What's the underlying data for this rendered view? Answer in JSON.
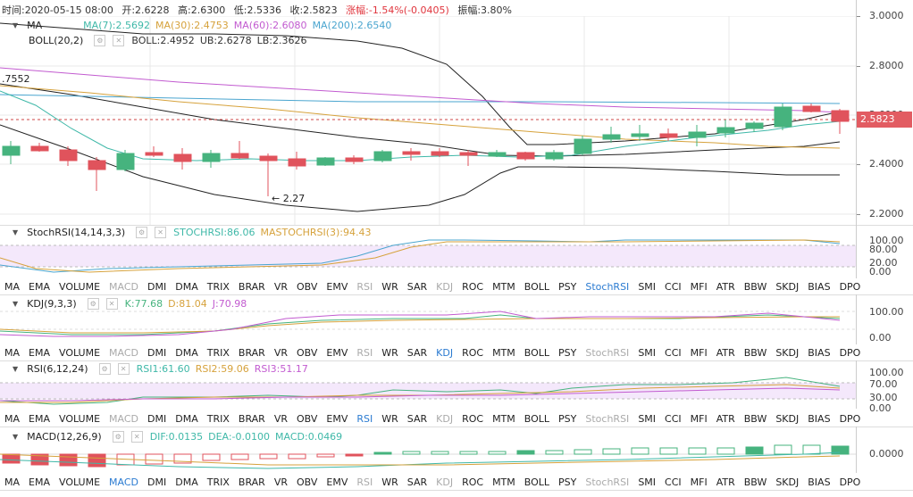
{
  "info": {
    "time": "时间:2020-05-15 08:00",
    "open": "开:2.6228",
    "high": "高:2.6300",
    "low": "低:2.5336",
    "close": "收:2.5823",
    "change": "涨幅:-1.54%(-0.0405)",
    "amplitude": "振幅:3.80%"
  },
  "main": {
    "ma_title": "MA",
    "ma7": "MA(7):2.5692",
    "ma30": "MA(30):2.4753",
    "ma60": "MA(60):2.6080",
    "ma200": "MA(200):2.6540",
    "boll_title": "BOLL(20,2)",
    "boll": "BOLL:2.4952",
    "ub": "UB:2.6278",
    "lb": "LB:2.3626",
    "left_value": ".7552",
    "low_annot": "← 2.27",
    "price_badge": "2.5823",
    "colors": {
      "ma7": "#3fb8a8",
      "ma30": "#d6a23c",
      "ma60": "#c25bd0",
      "ma200": "#4aa5cf",
      "boll": "#222222",
      "up": "#46b37e",
      "down": "#e0535c"
    }
  },
  "main_yaxis": [
    "3.0000",
    "2.8000",
    "2.6000",
    "2.4000",
    "2.2000"
  ],
  "stochrsi": {
    "title": "StochRSI(14,14,3,3)",
    "k": "STOCHRSI:86.06",
    "d": "MASTOCHRSI(3):94.43",
    "yaxis": [
      "100.00",
      "80.00",
      "20.00",
      "0.00"
    ]
  },
  "kdj": {
    "title": "KDJ(9,3,3)",
    "k": "K:77.68",
    "d": "D:81.04",
    "j": "J:70.98",
    "yaxis": [
      "100.00",
      "0.00"
    ]
  },
  "rsi": {
    "title": "RSI(6,12,24)",
    "r1": "RSI1:61.60",
    "r2": "RSI2:59.06",
    "r3": "RSI3:51.17",
    "yaxis": [
      "100.00",
      "70.00",
      "30.00",
      "0.00"
    ]
  },
  "macd": {
    "title": "MACD(12,26,9)",
    "dif": "DIF:0.0135",
    "dea": "DEA:-0.0100",
    "macd": "MACD:0.0469",
    "yaxis": [
      "0.0000"
    ]
  },
  "indicator_tabs": [
    "MA",
    "EMA",
    "VOLUME",
    "MACD",
    "DMI",
    "DMA",
    "TRIX",
    "BRAR",
    "VR",
    "OBV",
    "EMV",
    "RSI",
    "WR",
    "SAR",
    "KDJ",
    "ROC",
    "MTM",
    "BOLL",
    "PSY",
    "StochRSI",
    "SMI",
    "CCI",
    "MFI",
    "ATR",
    "BBW",
    "SKDJ",
    "BIAS",
    "DPO"
  ],
  "tabs_state": {
    "row1": {
      "active": "StochRSI",
      "off": [
        "MACD",
        "RSI",
        "KDJ"
      ]
    },
    "row2": {
      "active": "KDJ",
      "off": [
        "MACD",
        "RSI",
        "StochRSI"
      ]
    },
    "row3": {
      "active": "RSI",
      "off": [
        "MACD",
        "KDJ",
        "StochRSI"
      ]
    },
    "row4": {
      "active": "MACD",
      "off": [
        "RSI",
        "KDJ",
        "StochRSI"
      ]
    }
  }
}
